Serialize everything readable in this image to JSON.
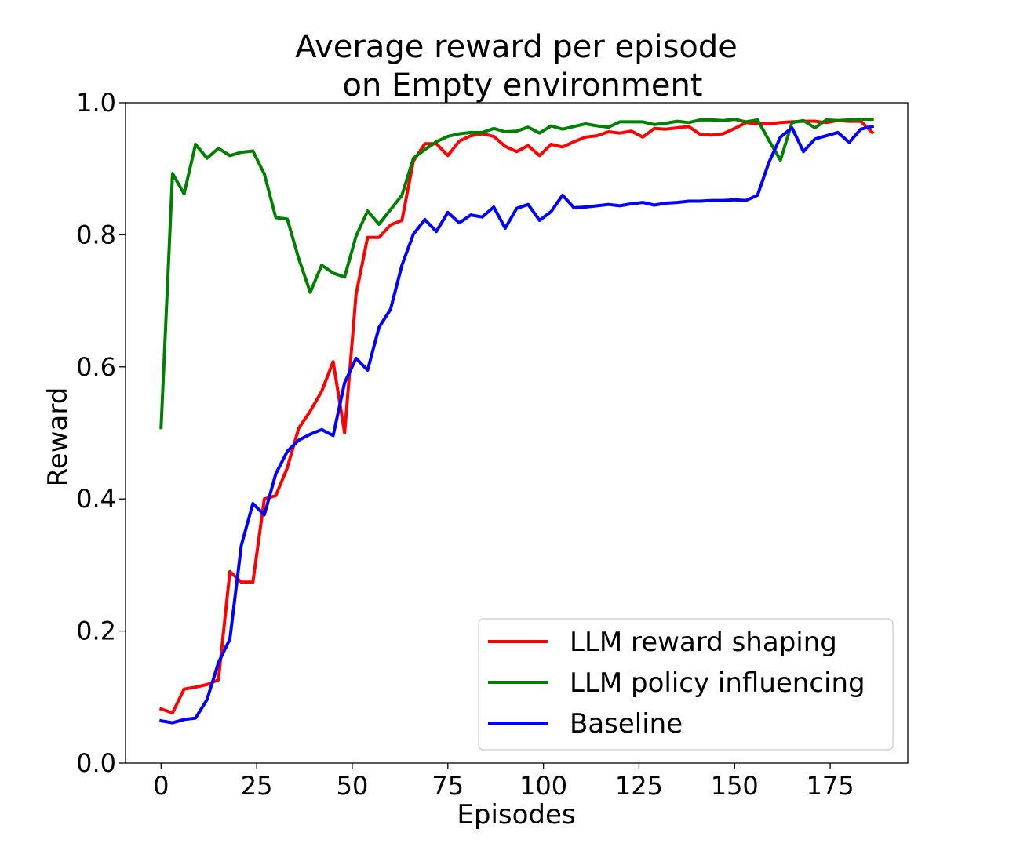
{
  "chart_data": {
    "type": "line",
    "title": [
      "Average reward per episode",
      "on Empty environment"
    ],
    "xlabel": "Episodes",
    "ylabel": "Reward",
    "xlim": [
      -9.3,
      195.3
    ],
    "ylim": [
      0.0,
      1.0
    ],
    "xticks": [
      0,
      25,
      50,
      75,
      100,
      125,
      150,
      175
    ],
    "yticks": [
      0.0,
      0.2,
      0.4,
      0.6,
      0.8,
      1.0
    ],
    "ytick_labels": [
      "0.0",
      "0.2",
      "0.4",
      "0.6",
      "0.8",
      "1.0"
    ],
    "grid": false,
    "legend_position": "lower-right",
    "x": [
      0,
      3,
      6,
      9,
      12,
      15,
      18,
      21,
      24,
      27,
      30,
      33,
      36,
      39,
      42,
      45,
      48,
      51,
      54,
      57,
      60,
      63,
      66,
      69,
      72,
      75,
      78,
      81,
      84,
      87,
      90,
      93,
      96,
      99,
      102,
      105,
      108,
      111,
      114,
      117,
      120,
      123,
      126,
      129,
      132,
      135,
      138,
      141,
      144,
      147,
      150,
      153,
      156,
      159,
      162,
      165,
      168,
      171,
      174,
      177,
      180,
      183,
      186
    ],
    "series": [
      {
        "name": "LLM reward shaping",
        "color": "#ff0000",
        "values": [
          0.082,
          0.076,
          0.112,
          0.115,
          0.119,
          0.126,
          0.29,
          0.274,
          0.274,
          0.4,
          0.405,
          0.447,
          0.507,
          0.533,
          0.563,
          0.608,
          0.5,
          0.71,
          0.796,
          0.796,
          0.815,
          0.822,
          0.912,
          0.938,
          0.938,
          0.92,
          0.942,
          0.95,
          0.953,
          0.949,
          0.934,
          0.926,
          0.935,
          0.92,
          0.937,
          0.933,
          0.941,
          0.948,
          0.95,
          0.956,
          0.954,
          0.957,
          0.948,
          0.961,
          0.96,
          0.962,
          0.964,
          0.952,
          0.951,
          0.953,
          0.961,
          0.97,
          0.968,
          0.968,
          0.97,
          0.971,
          0.972,
          0.972,
          0.97,
          0.973,
          0.972,
          0.972,
          0.955
        ]
      },
      {
        "name": "LLM policy influencing",
        "color": "#008000",
        "values": [
          0.508,
          0.893,
          0.862,
          0.937,
          0.916,
          0.931,
          0.92,
          0.925,
          0.927,
          0.892,
          0.826,
          0.824,
          0.764,
          0.713,
          0.754,
          0.742,
          0.736,
          0.798,
          0.836,
          0.816,
          0.838,
          0.86,
          0.916,
          0.929,
          0.941,
          0.949,
          0.953,
          0.955,
          0.955,
          0.961,
          0.956,
          0.957,
          0.963,
          0.954,
          0.965,
          0.96,
          0.964,
          0.968,
          0.965,
          0.963,
          0.971,
          0.971,
          0.971,
          0.967,
          0.969,
          0.972,
          0.97,
          0.974,
          0.974,
          0.973,
          0.975,
          0.971,
          0.974,
          0.943,
          0.913,
          0.97,
          0.973,
          0.962,
          0.974,
          0.973,
          0.974,
          0.975,
          0.975
        ]
      },
      {
        "name": "Baseline",
        "color": "#0000ff",
        "values": [
          0.064,
          0.061,
          0.066,
          0.068,
          0.096,
          0.152,
          0.188,
          0.33,
          0.393,
          0.376,
          0.438,
          0.472,
          0.489,
          0.498,
          0.505,
          0.496,
          0.576,
          0.613,
          0.595,
          0.66,
          0.687,
          0.754,
          0.801,
          0.823,
          0.805,
          0.834,
          0.818,
          0.83,
          0.827,
          0.842,
          0.81,
          0.84,
          0.846,
          0.822,
          0.835,
          0.86,
          0.841,
          0.842,
          0.844,
          0.846,
          0.844,
          0.847,
          0.849,
          0.845,
          0.848,
          0.849,
          0.851,
          0.851,
          0.852,
          0.852,
          0.853,
          0.852,
          0.86,
          0.91,
          0.948,
          0.962,
          0.926,
          0.945,
          0.95,
          0.955,
          0.94,
          0.96,
          0.964
        ]
      }
    ]
  }
}
